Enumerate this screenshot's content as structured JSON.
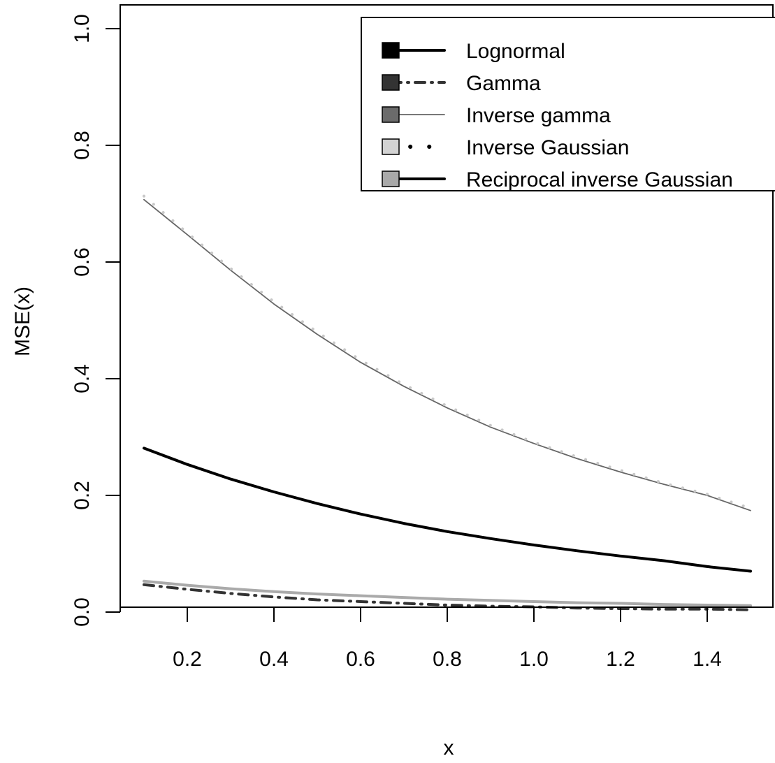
{
  "chart_data": {
    "type": "line",
    "title": "",
    "xlabel": "x",
    "ylabel": "MSE(x)",
    "xlim": [
      0.1,
      1.5
    ],
    "ylim": [
      0.0,
      1.0
    ],
    "x_ticks": [
      0.2,
      0.4,
      0.6,
      0.8,
      1.0,
      1.2,
      1.4
    ],
    "x_tick_labels": [
      "0.2",
      "0.4",
      "0.6",
      "0.8",
      "1.0",
      "1.2",
      "1.4"
    ],
    "y_ticks": [
      0.0,
      0.2,
      0.4,
      0.6,
      0.8,
      1.0
    ],
    "y_tick_labels": [
      "0.0",
      "0.2",
      "0.4",
      "0.6",
      "0.8",
      "1.0"
    ],
    "grid": false,
    "legend_position": "top-right",
    "x": [
      0.1,
      0.2,
      0.3,
      0.4,
      0.5,
      0.6,
      0.7,
      0.8,
      0.9,
      1.0,
      1.1,
      1.2,
      1.3,
      1.4,
      1.5
    ],
    "series": [
      {
        "name": "Lognormal",
        "color": "#000000",
        "swatch_color": "#000000",
        "line_style": "solid",
        "line_weight": "thick",
        "values": [
          0.281,
          0.253,
          0.228,
          0.206,
          0.186,
          0.168,
          0.152,
          0.138,
          0.126,
          0.115,
          0.105,
          0.096,
          0.088,
          0.078,
          0.07
        ]
      },
      {
        "name": "Gamma",
        "color": "#333333",
        "swatch_color": "#333333",
        "line_style": "dashdot",
        "line_weight": "thick",
        "values": [
          0.047,
          0.039,
          0.032,
          0.026,
          0.021,
          0.018,
          0.015,
          0.012,
          0.01,
          0.009,
          0.007,
          0.006,
          0.005,
          0.005,
          0.004
        ]
      },
      {
        "name": "Inverse gamma",
        "color": "#666666",
        "swatch_color": "#6b6b6b",
        "line_style": "solid",
        "line_weight": "thin",
        "values": [
          0.707,
          0.647,
          0.586,
          0.528,
          0.476,
          0.428,
          0.387,
          0.35,
          0.317,
          0.289,
          0.263,
          0.24,
          0.219,
          0.2,
          0.174
        ]
      },
      {
        "name": "Inverse Gaussian",
        "color": "#c8c8c8",
        "swatch_color": "#d3d3d3",
        "line_style": "dotted",
        "line_weight": "thick",
        "values": [
          0.713,
          0.65,
          0.589,
          0.532,
          0.48,
          0.432,
          0.39,
          0.353,
          0.32,
          0.291,
          0.266,
          0.243,
          0.221,
          0.202,
          0.178
        ]
      },
      {
        "name": "Reciprocal inverse Gaussian",
        "color": "#aaaaaa",
        "swatch_color": "#a9a9a9",
        "line_style": "solid",
        "line_weight": "thick",
        "values": [
          0.053,
          0.046,
          0.04,
          0.035,
          0.031,
          0.028,
          0.025,
          0.022,
          0.02,
          0.018,
          0.016,
          0.015,
          0.013,
          0.012,
          0.011
        ]
      }
    ]
  }
}
